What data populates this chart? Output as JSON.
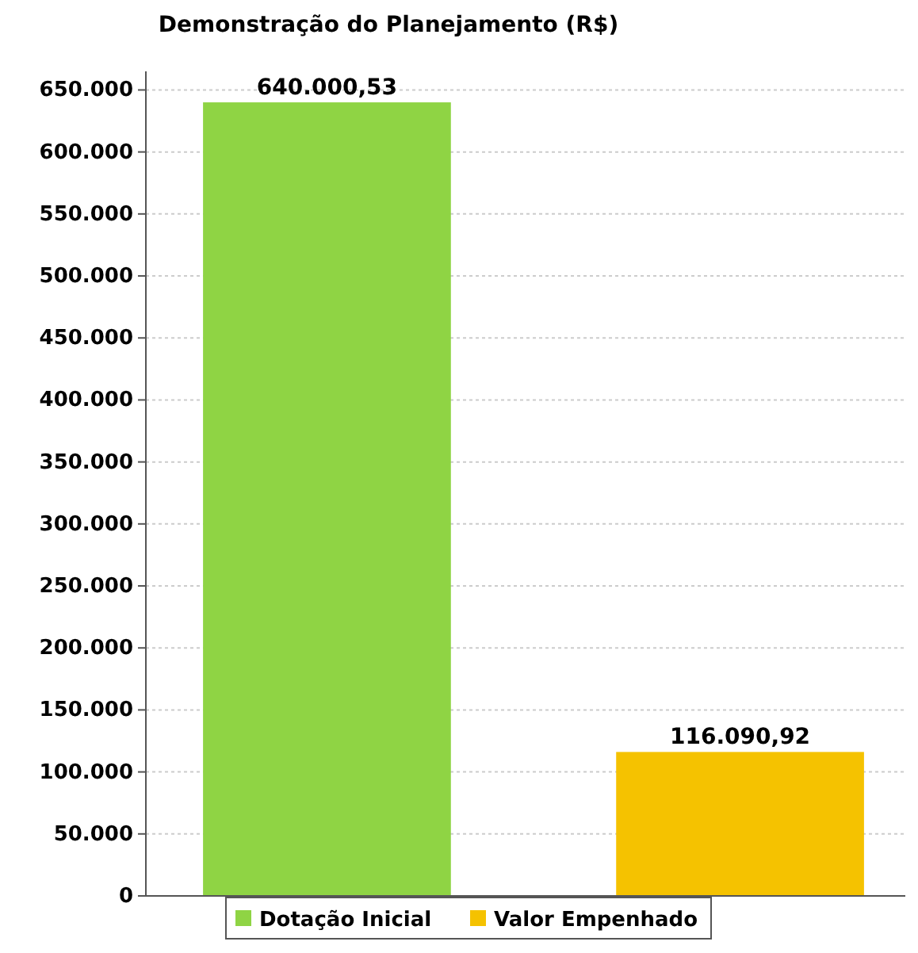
{
  "chart_data": {
    "type": "bar",
    "title": "Demonstração do Planejamento (R$)",
    "categories": [
      null,
      null
    ],
    "series": [
      {
        "name": "Dotação Inicial",
        "color": "#8fd444",
        "values": [
          640000.53,
          null
        ],
        "value_labels": [
          "640.000,53",
          null
        ]
      },
      {
        "name": "Valor Empenhado",
        "color": "#f5c200",
        "values": [
          null,
          116090.92
        ],
        "value_labels": [
          null,
          "116.090,92"
        ]
      }
    ],
    "ylim": [
      0,
      665000
    ],
    "yticks": [
      {
        "value": 0,
        "label": "0"
      },
      {
        "value": 50000,
        "label": "50.000"
      },
      {
        "value": 100000,
        "label": "100.000"
      },
      {
        "value": 150000,
        "label": "150.000"
      },
      {
        "value": 200000,
        "label": "200.000"
      },
      {
        "value": 250000,
        "label": "250.000"
      },
      {
        "value": 300000,
        "label": "300.000"
      },
      {
        "value": 350000,
        "label": "350.000"
      },
      {
        "value": 400000,
        "label": "400.000"
      },
      {
        "value": 450000,
        "label": "450.000"
      },
      {
        "value": 500000,
        "label": "500.000"
      },
      {
        "value": 550000,
        "label": "550.000"
      },
      {
        "value": 600000,
        "label": "600.000"
      },
      {
        "value": 650000,
        "label": "650.000"
      }
    ],
    "grid": "y",
    "legend": "bottom"
  }
}
